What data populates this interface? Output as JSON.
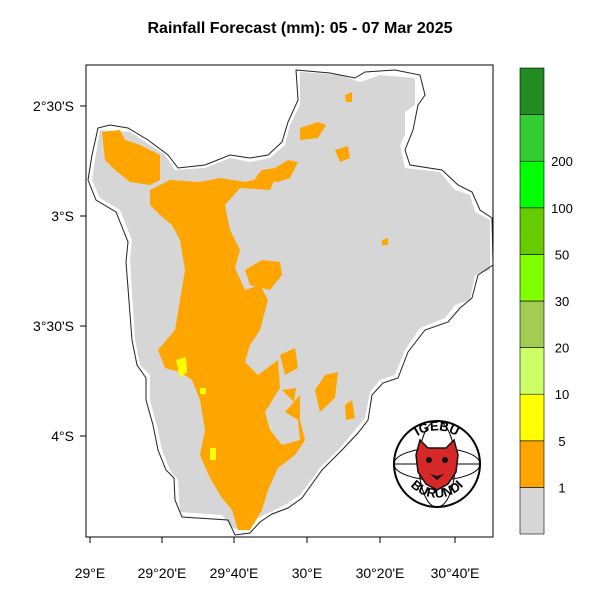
{
  "title": "Rainfall Forecast (mm): 05 - 07 Mar 2025",
  "axes": {
    "y_ticks": [
      "2°30'S",
      "3°S",
      "3°30'S",
      "4°S"
    ],
    "x_ticks": [
      "29°E",
      "29°20'E",
      "29°40'E",
      "30°E",
      "30°20'E",
      "30°40'E"
    ]
  },
  "legend": {
    "labels": [
      "1",
      "5",
      "10",
      "20",
      "30",
      "50",
      "100",
      "200"
    ],
    "colors": [
      "#d6d6d6",
      "#ffa500",
      "#ffff00",
      "#ccff66",
      "#a3cc52",
      "#80ff00",
      "#66cc00",
      "#00ff00",
      "#33cc33",
      "#228b22"
    ]
  },
  "logo": {
    "top_text": "IGEBU",
    "bottom_text": "BURUNDI"
  },
  "colors": {
    "no_rain": "#d6d6d6",
    "light_rain": "#ffa500",
    "moderate_rain": "#ffff00"
  }
}
